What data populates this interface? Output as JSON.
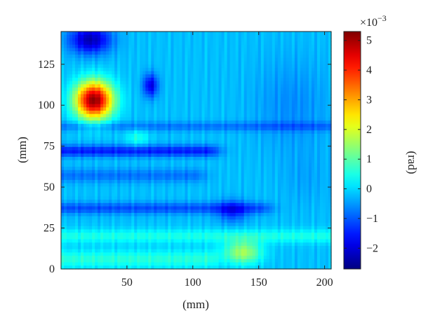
{
  "chart_data": {
    "type": "heatmap",
    "xlabel": "(mm)",
    "ylabel": "(mm)",
    "xlim": [
      0,
      205
    ],
    "ylim": [
      0,
      145
    ],
    "xticks": [
      50,
      100,
      150,
      200
    ],
    "yticks": [
      0,
      25,
      50,
      75,
      100,
      125
    ],
    "colorbar": {
      "label": "(rad)",
      "multiplier": "×10",
      "exponent": "−3",
      "range": [
        -2.7,
        5.3
      ],
      "ticks": [
        -2,
        -1,
        0,
        1,
        2,
        3,
        4,
        5
      ],
      "tick_labels": [
        "−2",
        "−1",
        "0",
        "1",
        "2",
        "3",
        "4",
        "5"
      ],
      "colormap": "jet"
    },
    "baseline_value": -0.2,
    "features": [
      {
        "kind": "blob",
        "x": 25,
        "y": 103,
        "sx": 10,
        "sy": 8,
        "value": 5.2
      },
      {
        "kind": "blob",
        "x": 22,
        "y": 140,
        "sx": 11,
        "sy": 6,
        "value": -2.3
      },
      {
        "kind": "blob",
        "x": 68,
        "y": 112,
        "sx": 4,
        "sy": 5,
        "value": -1.9
      },
      {
        "kind": "blob",
        "x": 138,
        "y": 10,
        "sx": 10,
        "sy": 5,
        "value": 1.6
      },
      {
        "kind": "blob",
        "x": 58,
        "y": 80,
        "sx": 6,
        "sy": 4,
        "value": 0.5
      },
      {
        "kind": "blob",
        "x": 130,
        "y": 35,
        "sx": 8,
        "sy": 5,
        "value": -1.2
      },
      {
        "kind": "blob",
        "x": 175,
        "y": 100,
        "sx": 20,
        "sy": 20,
        "value": -0.6
      },
      {
        "kind": "blob",
        "x": 185,
        "y": 55,
        "sx": 12,
        "sy": 12,
        "value": -0.4
      },
      {
        "kind": "band",
        "y": 72,
        "x0": 0,
        "x1": 110,
        "sy": 2.5,
        "value": -1.5
      },
      {
        "kind": "band",
        "y": 37,
        "x0": 0,
        "x1": 150,
        "sy": 2.5,
        "value": -1.1
      },
      {
        "kind": "band",
        "y": 57,
        "x0": 0,
        "x1": 100,
        "sy": 3,
        "value": -0.8
      },
      {
        "kind": "band",
        "y": 87,
        "x0": 0,
        "x1": 205,
        "sy": 2,
        "value": -0.8
      },
      {
        "kind": "band",
        "y": 20,
        "x0": 0,
        "x1": 205,
        "sy": 3,
        "value": 0.5
      },
      {
        "kind": "band",
        "y": 6,
        "x0": 0,
        "x1": 110,
        "sy": 4,
        "value": 0.6
      }
    ]
  }
}
